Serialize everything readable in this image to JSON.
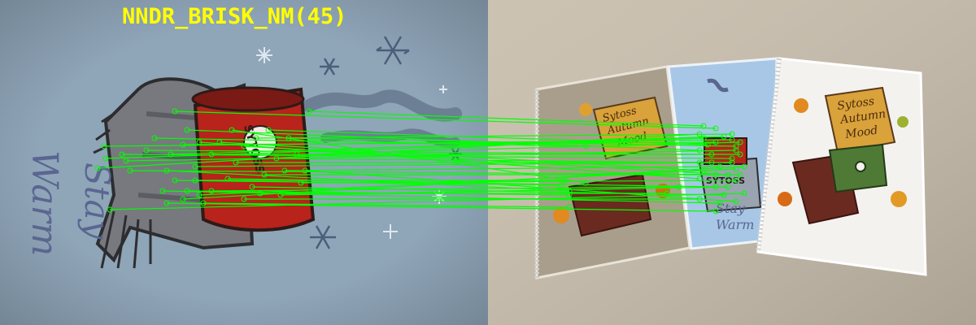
{
  "overlay": {
    "title": "NNDR_BRISK_NM(45)",
    "title_color": "#ffff00",
    "match_color": "#00ff00",
    "match_count": 45
  },
  "left_image": {
    "scene": "close-up of a notebook cover: red mug wrapped in a grey scarf with snowflakes",
    "handwritten_text": [
      "Stay",
      "Warm"
    ],
    "mug_text": "SYTOSS"
  },
  "right_image": {
    "scene": "three spiral notebooks on a beige table",
    "notebooks": [
      {
        "name": "autumn-books-left",
        "book_text": [
          "Sytoss",
          "Autumn",
          "Mood"
        ]
      },
      {
        "name": "stay-warm-middle",
        "mug_text": "SYTOSS",
        "handwritten_text": [
          "Stay",
          "Warm"
        ]
      },
      {
        "name": "autumn-books-right",
        "book_text": [
          "Sytoss",
          "Autumn",
          "Mood"
        ]
      }
    ]
  }
}
